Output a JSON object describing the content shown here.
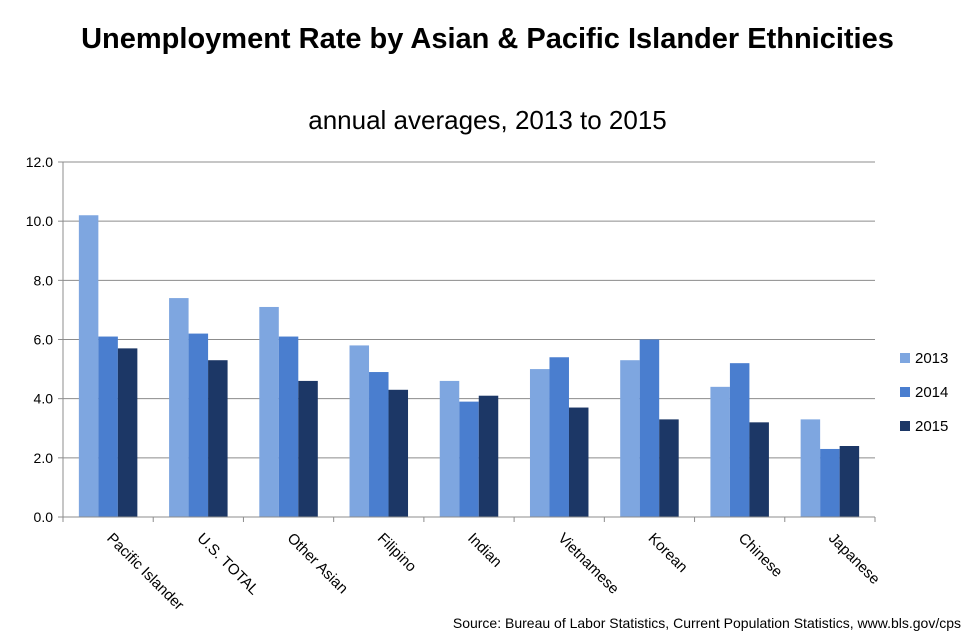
{
  "chart_data": {
    "type": "bar",
    "title": "Unemployment Rate by Asian & Pacific Islander Ethnicities",
    "subtitle": "annual averages, 2013 to 2015",
    "categories": [
      "Pacific Islander",
      "U.S. TOTAL",
      "Other Asian",
      "Filipino",
      "Indian",
      "Vietnamese",
      "Korean",
      "Chinese",
      "Japanese"
    ],
    "series": [
      {
        "name": "2013",
        "color": "#7ea6e0",
        "values": [
          10.2,
          7.4,
          7.1,
          5.8,
          4.6,
          5.0,
          5.3,
          4.4,
          3.3
        ]
      },
      {
        "name": "2014",
        "color": "#4a7ecf",
        "values": [
          6.1,
          6.2,
          6.1,
          4.9,
          3.9,
          5.4,
          6.0,
          5.2,
          2.3
        ]
      },
      {
        "name": "2015",
        "color": "#1c3766",
        "values": [
          5.7,
          5.3,
          4.6,
          4.3,
          4.1,
          3.7,
          3.3,
          3.2,
          2.4
        ]
      }
    ],
    "ylim": [
      0,
      12
    ],
    "yticks": [
      "0.0",
      "2.0",
      "4.0",
      "6.0",
      "8.0",
      "10.0",
      "12.0"
    ],
    "grid": true,
    "legend_position": "right",
    "source": "Source: Bureau of Labor Statistics, Current Population Statistics,  www.bls.gov/cps"
  }
}
